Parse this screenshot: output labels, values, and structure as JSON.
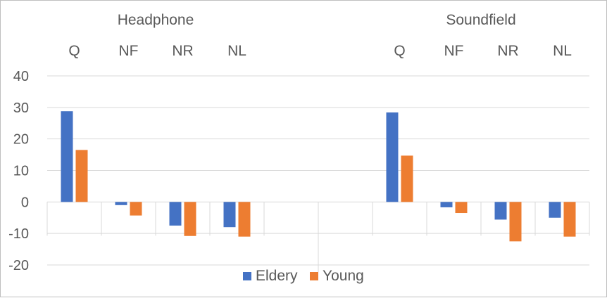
{
  "chart_data": {
    "type": "bar",
    "groups": [
      "Headphone",
      "Soundfield"
    ],
    "categories": [
      "Q",
      "NF",
      "NR",
      "NL",
      "",
      "",
      "Q",
      "NF",
      "NR",
      "NL"
    ],
    "series": [
      {
        "name": "Eldery",
        "color": "#4472C4",
        "values": [
          28.8,
          -1.0,
          -7.5,
          -8.0,
          null,
          null,
          28.4,
          -1.7,
          -5.6,
          -5.0
        ]
      },
      {
        "name": "Young",
        "color": "#ED7D31",
        "values": [
          16.5,
          -4.3,
          -10.8,
          -11.0,
          null,
          null,
          14.7,
          -3.5,
          -12.5,
          -11.0
        ]
      }
    ],
    "ylim": [
      -20,
      40
    ],
    "yticks": [
      "-20",
      "-10",
      "0",
      "10",
      "20",
      "30",
      "40"
    ],
    "grid": true,
    "legend": "bottom-center"
  }
}
